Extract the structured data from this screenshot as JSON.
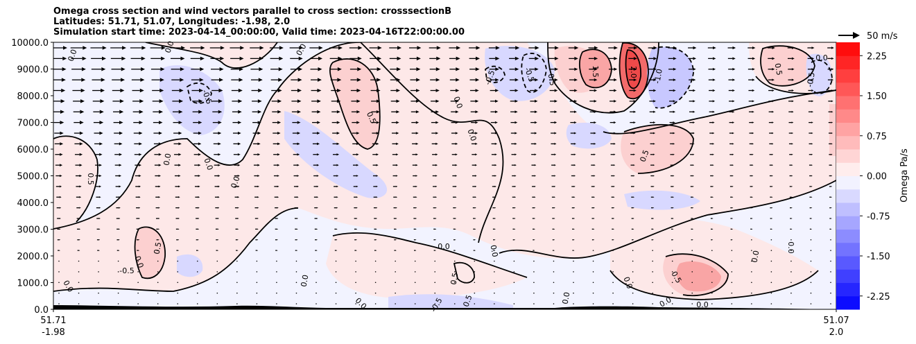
{
  "chart_data": {
    "type": "contour",
    "title_lines": [
      "Omega cross section and wind vectors parallel to cross section: crosssectionB",
      "Latitudes: 51.71, 51.07, Longitudes: -1.98, 2.0",
      "Simulation start time: 2023-04-14_00:00:00, Valid time: 2023-04-16T22:00:00.00"
    ],
    "x_ticks": [
      {
        "lat": "51.71",
        "lon": "-1.98"
      },
      {
        "lat": "51.07",
        "lon": "2.0"
      }
    ],
    "y_ticks": [
      "0.0",
      "1000.0",
      "2000.0",
      "3000.0",
      "4000.0",
      "5000.0",
      "6000.0",
      "7000.0",
      "8000.0",
      "9000.0",
      "10000.0"
    ],
    "ylim": [
      0,
      10000
    ],
    "colorbar": {
      "label": "Omega Pa/s",
      "ticks": [
        "-2.25",
        "-1.50",
        "-0.75",
        "0.00",
        "0.75",
        "1.50",
        "2.25"
      ],
      "range": [
        -2.5,
        2.5
      ],
      "colors_positive": "#ff0000",
      "colors_negative": "#0000ff"
    },
    "quiver_key": "50 m/s",
    "contour_labels": [
      "0.0",
      "0.5",
      "-0.5",
      "1.5",
      "2.0",
      "-1.0"
    ]
  }
}
